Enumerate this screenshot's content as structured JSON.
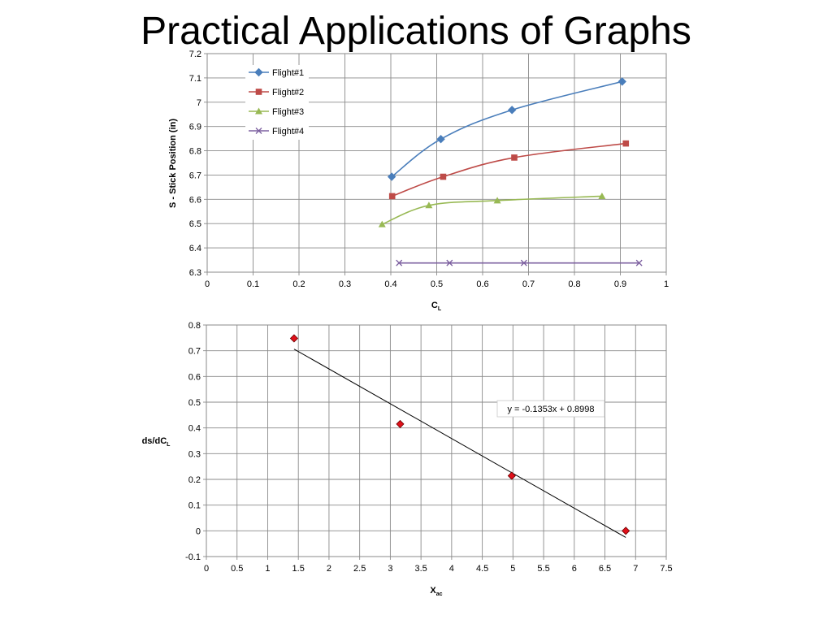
{
  "page": {
    "title": "Practical Applications of Graphs"
  },
  "chart_data": [
    {
      "type": "line",
      "xlabel": {
        "main": "C",
        "sub": "L"
      },
      "ylabel": "S - Stick Position (in)",
      "xlim": [
        0,
        1
      ],
      "ylim": [
        6.3,
        7.2
      ],
      "xticks": [
        "0",
        "0.1",
        "0.2",
        "0.3",
        "0.4",
        "0.5",
        "0.6",
        "0.7",
        "0.8",
        "0.9",
        "1"
      ],
      "yticks": [
        "6.3",
        "6.4",
        "6.5",
        "6.6",
        "6.7",
        "6.8",
        "6.9",
        "7",
        "7.1",
        "7.2"
      ],
      "grid": true,
      "legend": "top-left",
      "series": [
        {
          "name": "Flight#1",
          "color": "#4a7ebb",
          "marker": "diamond",
          "x": [
            0.402,
            0.509,
            0.664,
            0.904
          ],
          "y": [
            6.693,
            6.848,
            6.968,
            7.085
          ]
        },
        {
          "name": "Flight#2",
          "color": "#be4b48",
          "marker": "square",
          "x": [
            0.403,
            0.514,
            0.669,
            0.912
          ],
          "y": [
            6.613,
            6.693,
            6.772,
            6.83
          ]
        },
        {
          "name": "Flight#3",
          "color": "#98b954",
          "marker": "triangle",
          "x": [
            0.381,
            0.483,
            0.632,
            0.86
          ],
          "y": [
            6.497,
            6.575,
            6.595,
            6.613
          ]
        },
        {
          "name": "Flight#4",
          "color": "#7d60a0",
          "marker": "x",
          "x": [
            0.418,
            0.528,
            0.69,
            0.941
          ],
          "y": [
            6.338,
            6.338,
            6.338,
            6.338
          ]
        }
      ]
    },
    {
      "type": "scatter",
      "xlabel": {
        "main": "X",
        "sub": "ac"
      },
      "ylabel": {
        "main": "ds/dC",
        "sub": "L"
      },
      "xlim": [
        0,
        7.5
      ],
      "ylim": [
        -0.1,
        0.8
      ],
      "xticks": [
        "0",
        "0.5",
        "1",
        "1.5",
        "2",
        "2.5",
        "3",
        "3.5",
        "4",
        "4.5",
        "5",
        "5.5",
        "6",
        "6.5",
        "7",
        "7.5"
      ],
      "yticks": [
        "-0.1",
        "0",
        "0.1",
        "0.2",
        "0.3",
        "0.4",
        "0.5",
        "0.6",
        "0.7",
        "0.8"
      ],
      "grid": true,
      "points": {
        "color": "#e0101a",
        "marker": "diamond",
        "x": [
          1.43,
          3.16,
          4.98,
          6.84
        ],
        "y": [
          0.748,
          0.415,
          0.214,
          0.0
        ]
      },
      "trendline": {
        "slope": -0.1353,
        "intercept": 0.8998,
        "x_range": [
          1.43,
          6.84
        ],
        "equation": "y = -0.1353x + 0.8998"
      }
    }
  ]
}
